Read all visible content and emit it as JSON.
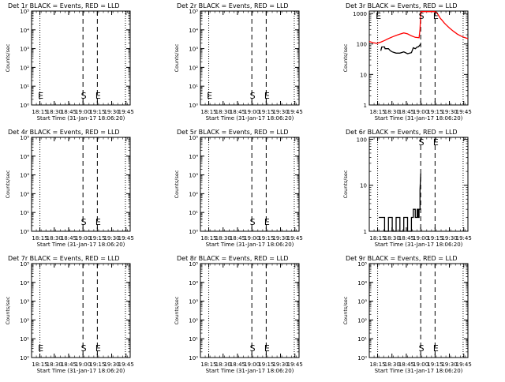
{
  "chart_data": [
    {
      "type": "line",
      "title": "Det 1r BLACK = Events, RED = LLD",
      "xlabel": "Start Time (31-Jan-17 18:06:20)",
      "ylabel": "Counts/sec",
      "log_y": true,
      "xticks": [
        "18:15",
        "18:30",
        "18:45",
        "19:00",
        "19:15",
        "19:30",
        "19:45"
      ],
      "yticks": [
        "10⁰",
        "10¹",
        "10²",
        "10³",
        "10⁴",
        "10⁵"
      ],
      "xlim_min": [
        0,
        103
      ],
      "ylim": [
        1,
        100000
      ],
      "dotted_lines_min": [
        8.7,
        98
      ],
      "dashed_lines_min": [
        53.7,
        68.7
      ],
      "markers": [
        {
          "label": "E",
          "t": 8.7
        },
        {
          "label": "S",
          "t": 53.7
        },
        {
          "label": "E",
          "t": 68.7
        }
      ],
      "series": []
    },
    {
      "type": "line",
      "title": "Det 2r BLACK = Events, RED = LLD",
      "xlabel": "Start Time (31-Jan-17 18:06:20)",
      "ylabel": "Counts/sec",
      "log_y": true,
      "xticks": [
        "18:15",
        "18:30",
        "18:45",
        "19:00",
        "19:15",
        "19:30",
        "19:45"
      ],
      "yticks": [
        "10⁰",
        "10¹",
        "10²",
        "10³",
        "10⁴",
        "10⁵"
      ],
      "xlim_min": [
        0,
        103
      ],
      "ylim": [
        1,
        100000
      ],
      "dotted_lines_min": [
        8.7,
        98
      ],
      "dashed_lines_min": [
        53.7,
        68.7
      ],
      "markers": [
        {
          "label": "E",
          "t": 8.7
        },
        {
          "label": "S",
          "t": 53.7
        },
        {
          "label": "E",
          "t": 68.7
        }
      ],
      "series": []
    },
    {
      "type": "line",
      "title": "Det 3r BLACK = Events, RED = LLD",
      "xlabel": "Start Time (31-Jan-17 18:06:20)",
      "ylabel": "Counts/sec",
      "log_y": true,
      "xticks": [
        "18:15",
        "18:30",
        "18:45",
        "19:00",
        "19:15",
        "19:30",
        "19:45"
      ],
      "yticks": [
        "1",
        "10",
        "100",
        "1000"
      ],
      "xlim_min": [
        0,
        103
      ],
      "ylim": [
        1,
        1200
      ],
      "dotted_lines_min": [
        8.7,
        98
      ],
      "dashed_lines_min": [
        53.7,
        68.7
      ],
      "markers": [
        {
          "label": "E",
          "t": 8.7
        },
        {
          "label": "S",
          "t": 53.7
        },
        {
          "label": "E",
          "t": 68.7
        }
      ],
      "series": [
        {
          "color": "#ff0000",
          "x": [
            0,
            4,
            8,
            12,
            16,
            20,
            24,
            28,
            32,
            36,
            40,
            44,
            48,
            52,
            53,
            53.7,
            54,
            56,
            58,
            60,
            62,
            64,
            66,
            68,
            70,
            72,
            74,
            76,
            78,
            80,
            84,
            88,
            92,
            96,
            100,
            103
          ],
          "y": [
            120,
            110,
            105,
            115,
            130,
            150,
            170,
            190,
            210,
            230,
            215,
            185,
            165,
            160,
            300,
            1000,
            1150,
            1150,
            1150,
            1150,
            1150,
            1150,
            1150,
            1150,
            1100,
            900,
            700,
            600,
            500,
            430,
            330,
            260,
            210,
            180,
            160,
            150
          ]
        },
        {
          "color": "#000000",
          "x": [
            12,
            13,
            16,
            16.5,
            20,
            22,
            24,
            28,
            32,
            36,
            40,
            44,
            46,
            48,
            50,
            51,
            52,
            53.7
          ],
          "y": [
            60,
            80,
            80,
            70,
            70,
            60,
            55,
            50,
            50,
            55,
            48,
            52,
            75,
            70,
            80,
            80,
            85,
            100
          ]
        }
      ]
    },
    {
      "type": "line",
      "title": "Det 4r BLACK = Events, RED = LLD",
      "xlabel": "Start Time (31-Jan-17 18:06:20)",
      "ylabel": "Counts/sec",
      "log_y": true,
      "xticks": [
        "18:15",
        "18:30",
        "18:45",
        "19:00",
        "19:15",
        "19:30",
        "19:45"
      ],
      "yticks": [
        "10⁰",
        "10¹",
        "10²",
        "10³",
        "10⁴",
        "10⁵"
      ],
      "xlim_min": [
        0,
        103
      ],
      "ylim": [
        1,
        100000
      ],
      "dotted_lines_min": [
        8.7,
        98
      ],
      "dashed_lines_min": [
        53.7,
        68.7
      ],
      "markers": [
        {
          "label": "S",
          "t": 53.7
        },
        {
          "label": "E",
          "t": 68.7
        }
      ],
      "series": []
    },
    {
      "type": "line",
      "title": "Det 5r BLACK = Events, RED = LLD",
      "xlabel": "Start Time (31-Jan-17 18:06:20)",
      "ylabel": "Counts/sec",
      "log_y": true,
      "xticks": [
        "18:15",
        "18:30",
        "18:45",
        "19:00",
        "19:15",
        "19:30",
        "19:45"
      ],
      "yticks": [
        "10⁰",
        "10¹",
        "10²",
        "10³",
        "10⁴",
        "10⁵"
      ],
      "xlim_min": [
        0,
        103
      ],
      "ylim": [
        1,
        100000
      ],
      "dotted_lines_min": [
        8.7,
        98
      ],
      "dashed_lines_min": [
        53.7,
        68.7
      ],
      "markers": [
        {
          "label": "S",
          "t": 53.7
        },
        {
          "label": "E",
          "t": 68.7
        }
      ],
      "series": []
    },
    {
      "type": "line",
      "title": "Det 6r BLACK = Events, RED = LLD",
      "xlabel": "Start Time (31-Jan-17 18:06:20)",
      "ylabel": "Counts/sec",
      "log_y": true,
      "xticks": [
        "18:15",
        "18:30",
        "18:45",
        "19:00",
        "19:15",
        "19:30",
        "19:45"
      ],
      "yticks": [
        "1",
        "10",
        "100"
      ],
      "xlim_min": [
        0,
        103
      ],
      "ylim": [
        1,
        110
      ],
      "dotted_lines_min": [
        8.7,
        98
      ],
      "dashed_lines_min": [
        53.7,
        68.7
      ],
      "markers": [
        {
          "label": "S",
          "t": 53.7
        },
        {
          "label": "E",
          "t": 68.7
        }
      ],
      "series": [
        {
          "color": "#000000",
          "x": [
            10,
            16,
            16,
            20,
            20,
            24,
            24,
            28,
            28,
            32,
            32,
            36,
            36,
            40,
            40,
            44,
            44,
            46,
            46,
            48,
            48,
            50,
            50,
            51,
            51,
            52,
            52,
            53,
            53,
            53.7
          ],
          "y": [
            2,
            2,
            1,
            1,
            2,
            2,
            1,
            1,
            2,
            2,
            1,
            1,
            2,
            2,
            1,
            1,
            2,
            2,
            3,
            3,
            2,
            2,
            3,
            3,
            2,
            2,
            3,
            3,
            8,
            18
          ]
        }
      ]
    },
    {
      "type": "line",
      "title": "Det 7r BLACK = Events, RED = LLD",
      "xlabel": "Start Time (31-Jan-17 18:06:20)",
      "ylabel": "Counts/sec",
      "log_y": true,
      "xticks": [
        "18:15",
        "18:30",
        "18:45",
        "19:00",
        "19:15",
        "19:30",
        "19:45"
      ],
      "yticks": [
        "10⁰",
        "10¹",
        "10²",
        "10³",
        "10⁴",
        "10⁵"
      ],
      "xlim_min": [
        0,
        103
      ],
      "ylim": [
        1,
        100000
      ],
      "dotted_lines_min": [
        8.7,
        98
      ],
      "dashed_lines_min": [
        53.7,
        68.7
      ],
      "markers": [
        {
          "label": "E",
          "t": 8.7
        },
        {
          "label": "S",
          "t": 53.7
        },
        {
          "label": "E",
          "t": 68.7
        }
      ],
      "series": []
    },
    {
      "type": "line",
      "title": "Det 8r BLACK = Events, RED = LLD",
      "xlabel": "Start Time (31-Jan-17 18:06:20)",
      "ylabel": "Counts/sec",
      "log_y": true,
      "xticks": [
        "18:15",
        "18:30",
        "18:45",
        "19:00",
        "19:15",
        "19:30",
        "19:45"
      ],
      "yticks": [
        "10⁰",
        "10¹",
        "10²",
        "10³",
        "10⁴",
        "10⁵"
      ],
      "xlim_min": [
        0,
        103
      ],
      "ylim": [
        1,
        100000
      ],
      "dotted_lines_min": [
        8.7,
        98
      ],
      "dashed_lines_min": [
        53.7,
        68.7
      ],
      "markers": [
        {
          "label": "S",
          "t": 53.7
        },
        {
          "label": "E",
          "t": 68.7
        }
      ],
      "series": []
    },
    {
      "type": "line",
      "title": "Det 9r BLACK = Events, RED = LLD",
      "xlabel": "Start Time (31-Jan-17 18:06:20)",
      "ylabel": "Counts/sec",
      "log_y": true,
      "xticks": [
        "18:15",
        "18:30",
        "18:45",
        "19:00",
        "19:15",
        "19:30",
        "19:45"
      ],
      "yticks": [
        "10⁰",
        "10¹",
        "10²",
        "10³",
        "10⁴",
        "10⁵"
      ],
      "xlim_min": [
        0,
        103
      ],
      "ylim": [
        1,
        100000
      ],
      "dotted_lines_min": [
        8.7,
        98
      ],
      "dashed_lines_min": [
        53.7,
        68.7
      ],
      "markers": [
        {
          "label": "S",
          "t": 53.7
        },
        {
          "label": "E",
          "t": 68.7
        }
      ],
      "series": []
    }
  ],
  "colors": {
    "background": "#ffffff",
    "axes": "#000000",
    "events": "#000000",
    "lld": "#ff0000"
  }
}
